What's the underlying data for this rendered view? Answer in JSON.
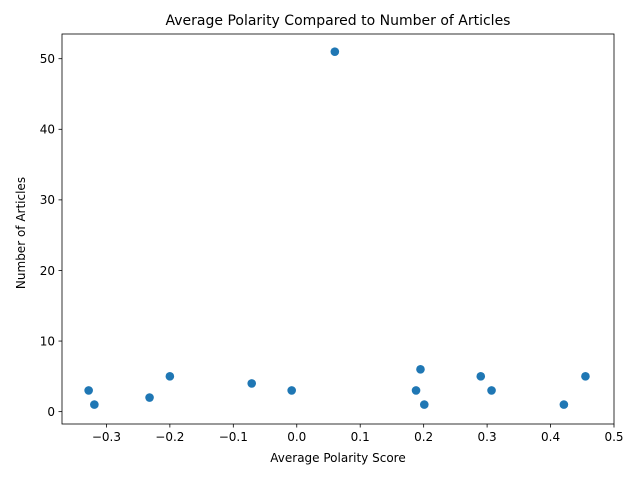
{
  "chart_data": {
    "type": "scatter",
    "title": "Average Polarity Compared to Number of Articles",
    "xlabel": "Average Polarity Score",
    "ylabel": "Number of Articles",
    "xlim": [
      -0.37,
      0.5
    ],
    "ylim": [
      -1.75,
      53.5
    ],
    "xticks": [
      -0.3,
      -0.2,
      -0.1,
      0.0,
      0.1,
      0.2,
      0.3,
      0.4,
      0.5
    ],
    "xtick_labels": [
      "−0.3",
      "−0.2",
      "−0.1",
      "0.0",
      "0.1",
      "0.2",
      "0.3",
      "0.4",
      "0.5"
    ],
    "yticks": [
      0,
      10,
      20,
      30,
      40,
      50
    ],
    "ytick_labels": [
      "0",
      "10",
      "20",
      "30",
      "40",
      "50"
    ],
    "grid": false,
    "marker_color": "#1f77b4",
    "points": [
      {
        "x": -0.328,
        "y": 3
      },
      {
        "x": -0.319,
        "y": 1
      },
      {
        "x": -0.232,
        "y": 2
      },
      {
        "x": -0.2,
        "y": 5
      },
      {
        "x": -0.071,
        "y": 4
      },
      {
        "x": -0.008,
        "y": 3
      },
      {
        "x": 0.06,
        "y": 51
      },
      {
        "x": 0.188,
        "y": 3
      },
      {
        "x": 0.195,
        "y": 6
      },
      {
        "x": 0.201,
        "y": 1
      },
      {
        "x": 0.29,
        "y": 5
      },
      {
        "x": 0.307,
        "y": 3
      },
      {
        "x": 0.421,
        "y": 1
      },
      {
        "x": 0.455,
        "y": 5
      }
    ]
  }
}
